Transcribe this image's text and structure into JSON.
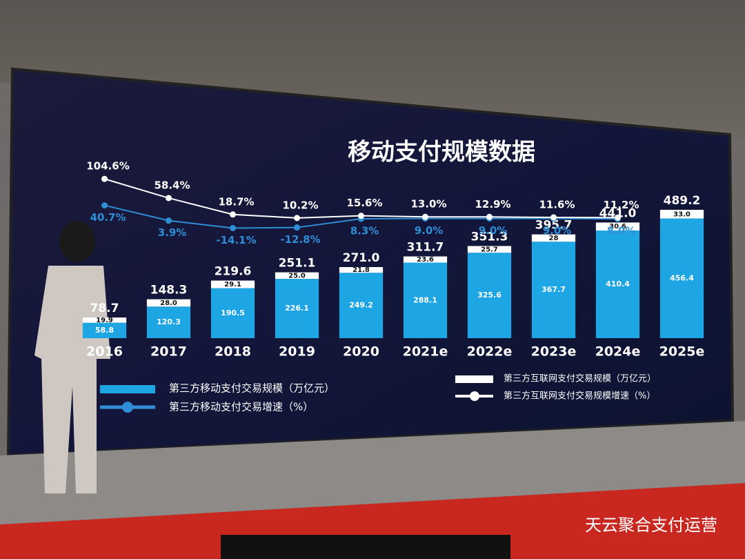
{
  "chart_data": {
    "type": "bar",
    "title": "移动支付规模数据",
    "categories": [
      "2016",
      "2017",
      "2018",
      "2019",
      "2020",
      "2021e",
      "2022e",
      "2023e",
      "2024e",
      "2025e"
    ],
    "ylim": [
      0,
      500
    ],
    "y2lim": [
      -30,
      120
    ],
    "series": [
      {
        "name": "第三方移动支付交易规模（万亿元）",
        "color": "#1ea6e4",
        "type": "bar",
        "values": [
          58.8,
          120.3,
          190.5,
          226.1,
          249.2,
          288.1,
          325.6,
          367.7,
          410.4,
          456.4
        ],
        "value_labels": [
          "58.8",
          "120.3",
          "190.5",
          "226.1",
          "249.2",
          "288.1",
          "325.6",
          "367.7",
          "410.4",
          "456.4"
        ]
      },
      {
        "name": "第三方互联网支付交易规模（万亿元）",
        "color": "#ffffff",
        "type": "bar",
        "values": [
          19.9,
          28.0,
          29.1,
          25.0,
          21.8,
          23.6,
          25.7,
          28,
          30.6,
          33.0
        ],
        "value_labels": [
          "19.9",
          "28.0",
          "29.1",
          "25.0",
          "21.8",
          "23.6",
          "25.7",
          "28",
          "30.6",
          "33.0"
        ]
      },
      {
        "name": "第三方移动支付交易增速（%）",
        "color": "#2f8fd6",
        "type": "line",
        "axis": "y2",
        "values": [
          40.7,
          3.9,
          -14.1,
          -12.8,
          8.3,
          9.0,
          9.0,
          9.0,
          8.0,
          null
        ],
        "value_labels": [
          "40.7%",
          "3.9%",
          "-14.1%",
          "-12.8%",
          "8.3%",
          "9.0%",
          "9.0%",
          "9.0%",
          "8.0%",
          null
        ]
      },
      {
        "name": "第三方互联网支付交易规模增速（%）",
        "color": "#ffffff",
        "type": "line",
        "axis": "y2",
        "values": [
          104.6,
          58.4,
          18.7,
          10.2,
          15.6,
          13.0,
          12.9,
          11.6,
          11.2,
          null
        ],
        "value_labels": [
          "104.6%",
          "58.4%",
          "18.7%",
          "10.2%",
          "15.6%",
          "13.0%",
          "12.9%",
          "11.6%",
          "11.2%",
          null
        ]
      }
    ],
    "totals": [
      78.7,
      148.3,
      219.6,
      251.1,
      271.0,
      311.7,
      351.3,
      395.7,
      441.0,
      489.2
    ],
    "total_labels": [
      "78.7",
      "148.3",
      "219.6",
      "251.1",
      "271.0",
      "311.7",
      "351.3",
      "395.7",
      "441.0",
      "489.2"
    ]
  },
  "watermark": "天云聚合支付运营"
}
